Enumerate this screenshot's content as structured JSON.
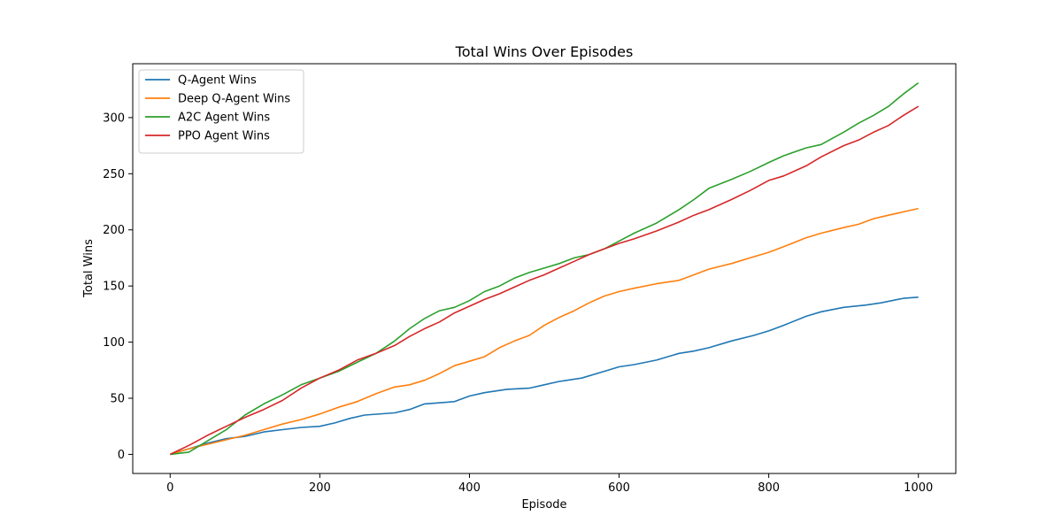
{
  "chart_data": {
    "type": "line",
    "title": "Total Wins Over Episodes",
    "xlabel": "Episode",
    "ylabel": "Total Wins",
    "xlim": [
      -50,
      1050
    ],
    "ylim": [
      -17,
      348
    ],
    "xticks": [
      0,
      200,
      400,
      600,
      800,
      1000
    ],
    "yticks": [
      0,
      50,
      100,
      150,
      200,
      250,
      300
    ],
    "grid": false,
    "legend_position": "top-left",
    "series": [
      {
        "name": "Q-Agent Wins",
        "color": "#1f77b4",
        "points": [
          [
            0,
            0
          ],
          [
            25,
            5
          ],
          [
            50,
            10
          ],
          [
            75,
            14
          ],
          [
            100,
            16
          ],
          [
            125,
            20
          ],
          [
            150,
            22
          ],
          [
            175,
            24
          ],
          [
            200,
            25
          ],
          [
            220,
            28
          ],
          [
            240,
            32
          ],
          [
            260,
            35
          ],
          [
            300,
            37
          ],
          [
            320,
            40
          ],
          [
            340,
            45
          ],
          [
            380,
            47
          ],
          [
            400,
            52
          ],
          [
            420,
            55
          ],
          [
            450,
            58
          ],
          [
            480,
            59
          ],
          [
            500,
            62
          ],
          [
            520,
            65
          ],
          [
            550,
            68
          ],
          [
            580,
            74
          ],
          [
            600,
            78
          ],
          [
            620,
            80
          ],
          [
            650,
            84
          ],
          [
            680,
            90
          ],
          [
            700,
            92
          ],
          [
            720,
            95
          ],
          [
            750,
            101
          ],
          [
            780,
            106
          ],
          [
            800,
            110
          ],
          [
            820,
            115
          ],
          [
            850,
            123
          ],
          [
            870,
            127
          ],
          [
            900,
            131
          ],
          [
            930,
            133
          ],
          [
            950,
            135
          ],
          [
            980,
            139
          ],
          [
            1000,
            140
          ]
        ]
      },
      {
        "name": "Deep Q-Agent Wins",
        "color": "#ff7f0e",
        "points": [
          [
            0,
            0
          ],
          [
            25,
            5
          ],
          [
            50,
            9
          ],
          [
            75,
            13
          ],
          [
            100,
            17
          ],
          [
            125,
            22
          ],
          [
            150,
            27
          ],
          [
            175,
            31
          ],
          [
            200,
            36
          ],
          [
            225,
            42
          ],
          [
            250,
            47
          ],
          [
            275,
            54
          ],
          [
            300,
            60
          ],
          [
            320,
            62
          ],
          [
            340,
            66
          ],
          [
            360,
            72
          ],
          [
            380,
            79
          ],
          [
            400,
            83
          ],
          [
            420,
            87
          ],
          [
            440,
            95
          ],
          [
            460,
            101
          ],
          [
            480,
            106
          ],
          [
            500,
            115
          ],
          [
            520,
            122
          ],
          [
            540,
            128
          ],
          [
            560,
            135
          ],
          [
            580,
            141
          ],
          [
            600,
            145
          ],
          [
            620,
            148
          ],
          [
            650,
            152
          ],
          [
            680,
            155
          ],
          [
            700,
            160
          ],
          [
            720,
            165
          ],
          [
            750,
            170
          ],
          [
            775,
            175
          ],
          [
            800,
            180
          ],
          [
            820,
            185
          ],
          [
            850,
            193
          ],
          [
            870,
            197
          ],
          [
            900,
            202
          ],
          [
            920,
            205
          ],
          [
            940,
            210
          ],
          [
            960,
            213
          ],
          [
            980,
            216
          ],
          [
            1000,
            219
          ]
        ]
      },
      {
        "name": "A2C Agent Wins",
        "color": "#2ca02c",
        "points": [
          [
            0,
            0
          ],
          [
            25,
            2
          ],
          [
            50,
            12
          ],
          [
            75,
            22
          ],
          [
            100,
            35
          ],
          [
            125,
            45
          ],
          [
            150,
            53
          ],
          [
            175,
            62
          ],
          [
            200,
            68
          ],
          [
            225,
            74
          ],
          [
            250,
            82
          ],
          [
            275,
            90
          ],
          [
            300,
            101
          ],
          [
            320,
            112
          ],
          [
            340,
            121
          ],
          [
            360,
            128
          ],
          [
            380,
            131
          ],
          [
            400,
            137
          ],
          [
            420,
            145
          ],
          [
            440,
            150
          ],
          [
            460,
            157
          ],
          [
            480,
            162
          ],
          [
            500,
            166
          ],
          [
            520,
            170
          ],
          [
            540,
            175
          ],
          [
            560,
            178
          ],
          [
            580,
            183
          ],
          [
            600,
            190
          ],
          [
            620,
            197
          ],
          [
            650,
            206
          ],
          [
            680,
            218
          ],
          [
            700,
            227
          ],
          [
            720,
            237
          ],
          [
            750,
            245
          ],
          [
            775,
            252
          ],
          [
            800,
            260
          ],
          [
            820,
            266
          ],
          [
            850,
            273
          ],
          [
            870,
            276
          ],
          [
            900,
            287
          ],
          [
            920,
            295
          ],
          [
            940,
            302
          ],
          [
            960,
            310
          ],
          [
            980,
            321
          ],
          [
            1000,
            331
          ]
        ]
      },
      {
        "name": "PPO Agent Wins",
        "color": "#d62728",
        "points": [
          [
            0,
            0
          ],
          [
            25,
            8
          ],
          [
            50,
            17
          ],
          [
            75,
            25
          ],
          [
            100,
            33
          ],
          [
            125,
            40
          ],
          [
            150,
            48
          ],
          [
            175,
            59
          ],
          [
            200,
            68
          ],
          [
            225,
            75
          ],
          [
            250,
            84
          ],
          [
            275,
            90
          ],
          [
            300,
            97
          ],
          [
            320,
            105
          ],
          [
            340,
            112
          ],
          [
            360,
            118
          ],
          [
            380,
            126
          ],
          [
            400,
            132
          ],
          [
            420,
            138
          ],
          [
            440,
            143
          ],
          [
            460,
            149
          ],
          [
            480,
            155
          ],
          [
            500,
            160
          ],
          [
            520,
            166
          ],
          [
            540,
            172
          ],
          [
            560,
            178
          ],
          [
            580,
            183
          ],
          [
            600,
            188
          ],
          [
            620,
            192
          ],
          [
            650,
            199
          ],
          [
            680,
            207
          ],
          [
            700,
            213
          ],
          [
            720,
            218
          ],
          [
            750,
            227
          ],
          [
            775,
            235
          ],
          [
            800,
            244
          ],
          [
            820,
            248
          ],
          [
            850,
            257
          ],
          [
            870,
            265
          ],
          [
            900,
            275
          ],
          [
            920,
            280
          ],
          [
            940,
            287
          ],
          [
            960,
            293
          ],
          [
            980,
            302
          ],
          [
            1000,
            310
          ]
        ]
      }
    ]
  }
}
